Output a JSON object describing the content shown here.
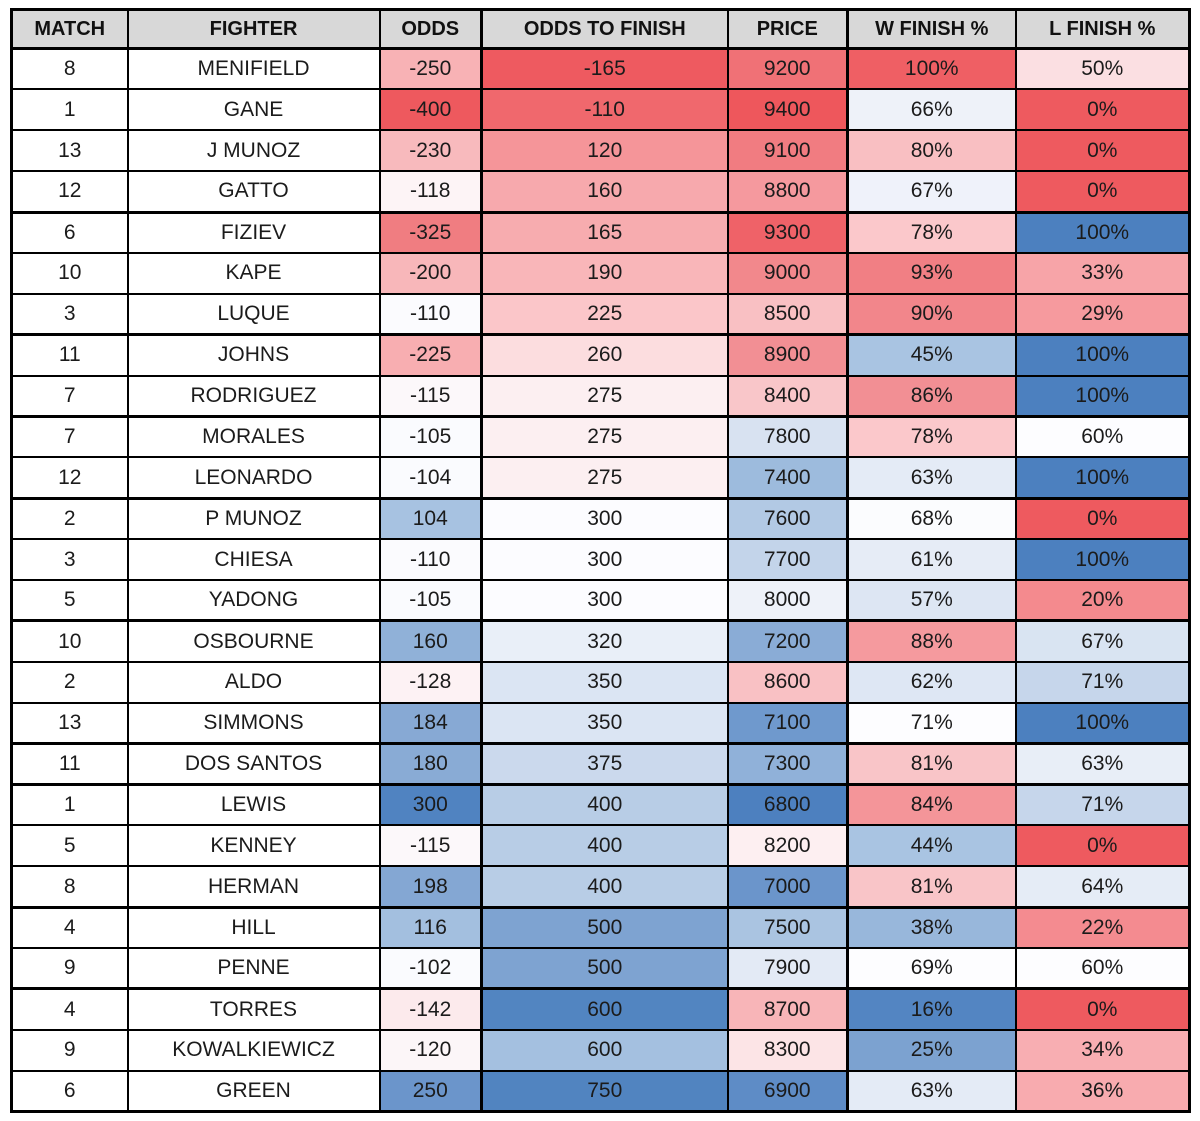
{
  "table": {
    "columns": [
      {
        "key": "match",
        "label": "MATCH"
      },
      {
        "key": "fighter",
        "label": "FIGHTER"
      },
      {
        "key": "odds",
        "label": "ODDS"
      },
      {
        "key": "odds_to_finish",
        "label": "ODDS TO FINISH"
      },
      {
        "key": "price",
        "label": "PRICE"
      },
      {
        "key": "w_finish",
        "label": "W FINISH %"
      },
      {
        "key": "l_finish",
        "label": "L FINISH %"
      }
    ],
    "theme": {
      "header_bg": "#d8d8d8",
      "border_color": "#000000",
      "text_color": "#1b1b1b",
      "scale_red_max": "#ee5a5f",
      "scale_mid": "#fcfcff",
      "scale_blue_max": "#4c80bf"
    },
    "rows": [
      {
        "match": "8",
        "fighter": "MENIFIELD",
        "odds": "-250",
        "odds_to_finish": "-165",
        "price": "9200",
        "w_finish": "100%",
        "l_finish": "50%",
        "colors": {
          "odds": "#f8b2b5",
          "odds_to_finish": "#ee5a60",
          "price": "#f07176",
          "w_finish": "#ef5f64",
          "l_finish": "#fbdfe2"
        },
        "group_end": false
      },
      {
        "match": "1",
        "fighter": "GANE",
        "odds": "-400",
        "odds_to_finish": "-110",
        "price": "9400",
        "w_finish": "66%",
        "l_finish": "0%",
        "colors": {
          "odds": "#ee595e",
          "odds_to_finish": "#f0686d",
          "price": "#ee575c",
          "w_finish": "#eef2f9",
          "l_finish": "#ee5a5f"
        },
        "group_end": false
      },
      {
        "match": "13",
        "fighter": "J MUNOZ",
        "odds": "-230",
        "odds_to_finish": "120",
        "price": "9100",
        "w_finish": "80%",
        "l_finish": "0%",
        "colors": {
          "odds": "#f8babd",
          "odds_to_finish": "#f59599",
          "price": "#f17c81",
          "w_finish": "#f9bfc2",
          "l_finish": "#ee5a5f"
        },
        "group_end": false
      },
      {
        "match": "12",
        "fighter": "GATTO",
        "odds": "-118",
        "odds_to_finish": "160",
        "price": "8800",
        "w_finish": "67%",
        "l_finish": "0%",
        "colors": {
          "odds": "#fdf4f6",
          "odds_to_finish": "#f7a9ad",
          "price": "#f5999e",
          "w_finish": "#eff2fa",
          "l_finish": "#ee5a5f"
        },
        "group_end": true
      },
      {
        "match": "6",
        "fighter": "FIZIEV",
        "odds": "-325",
        "odds_to_finish": "165",
        "price": "9300",
        "w_finish": "78%",
        "l_finish": "100%",
        "colors": {
          "odds": "#f07d81",
          "odds_to_finish": "#f7acaf",
          "price": "#ef6268",
          "w_finish": "#fbc8cb",
          "l_finish": "#4c80bf"
        },
        "group_end": false
      },
      {
        "match": "10",
        "fighter": "KAPE",
        "odds": "-200",
        "odds_to_finish": "190",
        "price": "9000",
        "w_finish": "93%",
        "l_finish": "33%",
        "colors": {
          "odds": "#f8b7ba",
          "odds_to_finish": "#f9b6b9",
          "price": "#f2888c",
          "w_finish": "#f17f84",
          "l_finish": "#f7a4a8"
        },
        "group_end": false
      },
      {
        "match": "3",
        "fighter": "LUQUE",
        "odds": "-110",
        "odds_to_finish": "225",
        "price": "8500",
        "w_finish": "90%",
        "l_finish": "29%",
        "colors": {
          "odds": "#fbfbfe",
          "odds_to_finish": "#fbc6c9",
          "price": "#f9c0c3",
          "w_finish": "#f2868b",
          "l_finish": "#f69a9e"
        },
        "group_end": true
      },
      {
        "match": "11",
        "fighter": "JOHNS",
        "odds": "-225",
        "odds_to_finish": "260",
        "price": "8900",
        "w_finish": "45%",
        "l_finish": "100%",
        "colors": {
          "odds": "#f8aeb1",
          "odds_to_finish": "#fcdddf",
          "price": "#f28f94",
          "w_finish": "#a9c4e2",
          "l_finish": "#4c80bf"
        },
        "group_end": false
      },
      {
        "match": "7",
        "fighter": "RODRIGUEZ",
        "odds": "-115",
        "odds_to_finish": "275",
        "price": "8400",
        "w_finish": "86%",
        "l_finish": "100%",
        "colors": {
          "odds": "#fcf8fa",
          "odds_to_finish": "#fceff1",
          "price": "#f9c6c9",
          "w_finish": "#f28f94",
          "l_finish": "#4c80bf"
        },
        "group_end": true
      },
      {
        "match": "7",
        "fighter": "MORALES",
        "odds": "-105",
        "odds_to_finish": "275",
        "price": "7800",
        "w_finish": "78%",
        "l_finish": "60%",
        "colors": {
          "odds": "#fafbfe",
          "odds_to_finish": "#fceff1",
          "price": "#d8e2f1",
          "w_finish": "#fbc8cb",
          "l_finish": "#fdfdff"
        },
        "group_end": false
      },
      {
        "match": "12",
        "fighter": "LEONARDO",
        "odds": "-104",
        "odds_to_finish": "275",
        "price": "7400",
        "w_finish": "63%",
        "l_finish": "100%",
        "colors": {
          "odds": "#fafbfe",
          "odds_to_finish": "#fceff1",
          "price": "#9dbbdd",
          "w_finish": "#e4ebf6",
          "l_finish": "#4c80bf"
        },
        "group_end": true
      },
      {
        "match": "2",
        "fighter": "P MUNOZ",
        "odds": "104",
        "odds_to_finish": "300",
        "price": "7600",
        "w_finish": "68%",
        "l_finish": "0%",
        "colors": {
          "odds": "#a7c2e1",
          "odds_to_finish": "#fcfcff",
          "price": "#b2c9e4",
          "w_finish": "#fbfcfe",
          "l_finish": "#ee5a5f"
        },
        "group_end": false
      },
      {
        "match": "3",
        "fighter": "CHIESA",
        "odds": "-110",
        "odds_to_finish": "300",
        "price": "7700",
        "w_finish": "61%",
        "l_finish": "100%",
        "colors": {
          "odds": "#fbfbfe",
          "odds_to_finish": "#fcfcff",
          "price": "#c3d4ea",
          "w_finish": "#e6ecf6",
          "l_finish": "#4c80bf"
        },
        "group_end": false
      },
      {
        "match": "5",
        "fighter": "YADONG",
        "odds": "-105",
        "odds_to_finish": "300",
        "price": "8000",
        "w_finish": "57%",
        "l_finish": "20%",
        "colors": {
          "odds": "#fafbfe",
          "odds_to_finish": "#fcfcff",
          "price": "#eef2f9",
          "w_finish": "#dde6f3",
          "l_finish": "#f48a8e"
        },
        "group_end": true
      },
      {
        "match": "10",
        "fighter": "OSBOURNE",
        "odds": "160",
        "odds_to_finish": "320",
        "price": "7200",
        "w_finish": "88%",
        "l_finish": "67%",
        "colors": {
          "odds": "#90b1d8",
          "odds_to_finish": "#e9eff8",
          "price": "#8aacd6",
          "w_finish": "#f59a9e",
          "l_finish": "#d9e4f2"
        },
        "group_end": false
      },
      {
        "match": "2",
        "fighter": "ALDO",
        "odds": "-128",
        "odds_to_finish": "350",
        "price": "8600",
        "w_finish": "62%",
        "l_finish": "71%",
        "colors": {
          "odds": "#fdf2f4",
          "odds_to_finish": "#dbe5f3",
          "price": "#f9c1c4",
          "w_finish": "#dee7f4",
          "l_finish": "#c6d6eb"
        },
        "group_end": false
      },
      {
        "match": "13",
        "fighter": "SIMMONS",
        "odds": "184",
        "odds_to_finish": "350",
        "price": "7100",
        "w_finish": "71%",
        "l_finish": "100%",
        "colors": {
          "odds": "#87a9d4",
          "odds_to_finish": "#dbe5f3",
          "price": "#6f99cd",
          "w_finish": "#fdfdff",
          "l_finish": "#4c80bf"
        },
        "group_end": true
      },
      {
        "match": "11",
        "fighter": "DOS SANTOS",
        "odds": "180",
        "odds_to_finish": "375",
        "price": "7300",
        "w_finish": "81%",
        "l_finish": "63%",
        "colors": {
          "odds": "#89abd5",
          "odds_to_finish": "#cbd9ed",
          "price": "#90b1d9",
          "w_finish": "#f9c5c8",
          "l_finish": "#e8eef7"
        },
        "group_end": true
      },
      {
        "match": "1",
        "fighter": "LEWIS",
        "odds": "300",
        "odds_to_finish": "400",
        "price": "6800",
        "w_finish": "84%",
        "l_finish": "71%",
        "colors": {
          "odds": "#5083c1",
          "odds_to_finish": "#b8cde6",
          "price": "#4d80bf",
          "w_finish": "#f49599",
          "l_finish": "#c6d6eb"
        },
        "group_end": false
      },
      {
        "match": "5",
        "fighter": "KENNEY",
        "odds": "-115",
        "odds_to_finish": "400",
        "price": "8200",
        "w_finish": "44%",
        "l_finish": "0%",
        "colors": {
          "odds": "#fcf8fa",
          "odds_to_finish": "#b8cde6",
          "price": "#fdeff1",
          "w_finish": "#a9c4e2",
          "l_finish": "#ee5a5f"
        },
        "group_end": false
      },
      {
        "match": "8",
        "fighter": "HERMAN",
        "odds": "198",
        "odds_to_finish": "400",
        "price": "7000",
        "w_finish": "81%",
        "l_finish": "64%",
        "colors": {
          "odds": "#84a7d3",
          "odds_to_finish": "#b8cde6",
          "price": "#6b95cb",
          "w_finish": "#f9c5c8",
          "l_finish": "#e5ecf6"
        },
        "group_end": true
      },
      {
        "match": "4",
        "fighter": "HILL",
        "odds": "116",
        "odds_to_finish": "500",
        "price": "7500",
        "w_finish": "38%",
        "l_finish": "22%",
        "colors": {
          "odds": "#a3bfdf",
          "odds_to_finish": "#7ea3d1",
          "price": "#aac4e1",
          "w_finish": "#98b7db",
          "l_finish": "#f48b90"
        },
        "group_end": false
      },
      {
        "match": "9",
        "fighter": "PENNE",
        "odds": "-102",
        "odds_to_finish": "500",
        "price": "7900",
        "w_finish": "69%",
        "l_finish": "60%",
        "colors": {
          "odds": "#fafbfe",
          "odds_to_finish": "#7ea3d1",
          "price": "#e3eaf5",
          "w_finish": "#fdfdff",
          "l_finish": "#fdfdff"
        },
        "group_end": true
      },
      {
        "match": "4",
        "fighter": "TORRES",
        "odds": "-142",
        "odds_to_finish": "600",
        "price": "8700",
        "w_finish": "16%",
        "l_finish": "0%",
        "colors": {
          "odds": "#fceaec",
          "odds_to_finish": "#5285c1",
          "price": "#f8b5b8",
          "w_finish": "#5385c2",
          "l_finish": "#ee5a5f"
        },
        "group_end": false
      },
      {
        "match": "9",
        "fighter": "KOWALKIEWICZ",
        "odds": "-120",
        "odds_to_finish": "600",
        "price": "8300",
        "w_finish": "25%",
        "l_finish": "34%",
        "colors": {
          "odds": "#fcf6f8",
          "odds_to_finish": "#a4c0e0",
          "price": "#fce4e6",
          "w_finish": "#7ca2d0",
          "l_finish": "#f8aeb2"
        },
        "group_end": false
      },
      {
        "match": "6",
        "fighter": "GREEN",
        "odds": "250",
        "odds_to_finish": "750",
        "price": "6900",
        "w_finish": "63%",
        "l_finish": "36%",
        "colors": {
          "odds": "#6b95cb",
          "odds_to_finish": "#5184c0",
          "price": "#5e8cc6",
          "w_finish": "#e4ebf6",
          "l_finish": "#f8abaf"
        },
        "group_end": false
      }
    ]
  }
}
